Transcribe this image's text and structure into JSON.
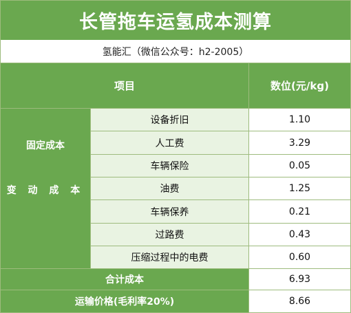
{
  "title": "长管拖车运氢成本测算",
  "subtitle": "氢能汇（微信公众号：h2-2005）",
  "header": {
    "item": "项目",
    "value": "数位(元/kg)"
  },
  "groups": {
    "fixed": "固定成本",
    "variable": "变 动 成 本"
  },
  "rows": [
    {
      "label": "设备折旧",
      "value": "1.10"
    },
    {
      "label": "人工费",
      "value": "3.29"
    },
    {
      "label": "车辆保险",
      "value": "0.05"
    },
    {
      "label": "油费",
      "value": "1.25"
    },
    {
      "label": "车辆保养",
      "value": "0.21"
    },
    {
      "label": "过路费",
      "value": "0.43"
    },
    {
      "label": "压缩过程中的电费",
      "value": "0.60"
    }
  ],
  "total": {
    "label": "合计成本",
    "value": "6.93"
  },
  "price": {
    "label": "运输价格(毛利率20%)",
    "value": "8.66"
  },
  "colors": {
    "green": "#6aa84f",
    "light_green": "#e9f3e2",
    "border": "#9dbb7d"
  }
}
